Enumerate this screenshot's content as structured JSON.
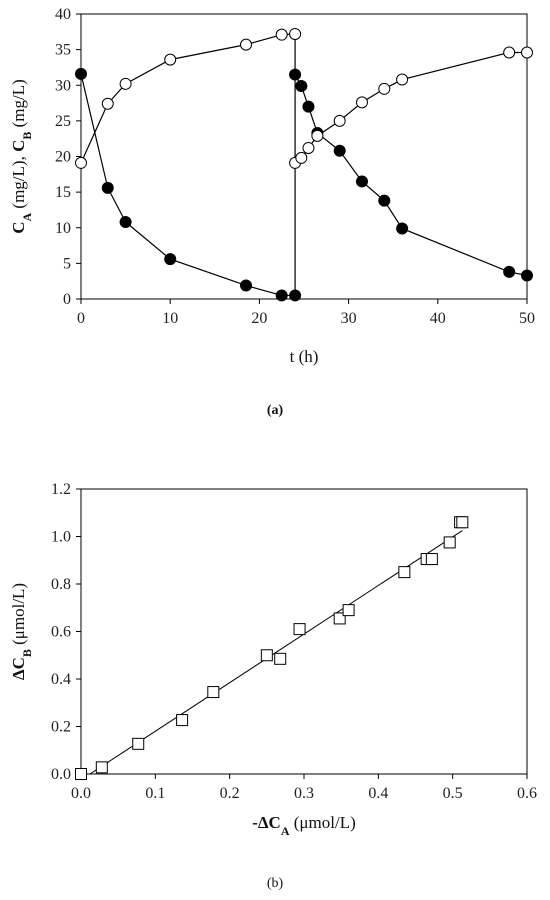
{
  "chart_data": [
    {
      "panel": "(a)",
      "type": "scatter",
      "xlabel": "t (h)",
      "ylabel": {
        "parts": [
          "C",
          "A",
          " (mg/L), ",
          "C",
          "B",
          " (mg/L)"
        ]
      },
      "xlim": [
        0,
        50
      ],
      "ylim": [
        0,
        40
      ],
      "xticks": [
        0,
        10,
        20,
        30,
        40,
        50
      ],
      "yticks": [
        0,
        5,
        10,
        15,
        20,
        25,
        30,
        35,
        40
      ],
      "grid": false,
      "series": [
        {
          "marker": "filled-circle",
          "segments": [
            [
              [
                0,
                31.6
              ],
              [
                3,
                15.6
              ],
              [
                5,
                10.8
              ],
              [
                10,
                5.6
              ],
              [
                18.5,
                1.9
              ],
              [
                22.5,
                0.5
              ],
              [
                24,
                0.5
              ]
            ],
            [
              [
                24,
                31.5
              ],
              [
                24.7,
                29.9
              ],
              [
                25.5,
                27.0
              ],
              [
                26.5,
                23.3
              ],
              [
                29,
                20.8
              ],
              [
                31.5,
                16.5
              ],
              [
                34,
                13.8
              ],
              [
                36,
                9.9
              ],
              [
                48,
                3.8
              ],
              [
                50,
                3.3
              ]
            ]
          ]
        },
        {
          "marker": "open-circle",
          "segments": [
            [
              [
                0,
                19.1
              ],
              [
                3,
                27.4
              ],
              [
                5,
                30.2
              ],
              [
                10,
                33.6
              ],
              [
                18.5,
                35.7
              ],
              [
                22.5,
                37.1
              ],
              [
                24,
                37.2
              ]
            ],
            [
              [
                24,
                19.1
              ],
              [
                24.7,
                19.8
              ],
              [
                25.5,
                21.2
              ],
              [
                26.5,
                22.9
              ],
              [
                29,
                25.0
              ],
              [
                31.5,
                27.6
              ],
              [
                34,
                29.5
              ],
              [
                36,
                30.8
              ],
              [
                48,
                34.6
              ],
              [
                50,
                34.6
              ]
            ]
          ]
        }
      ],
      "connector_lines": [
        [
          [
            24,
            0.5
          ],
          [
            24,
            37.2
          ]
        ]
      ]
    },
    {
      "panel": "(b)",
      "type": "scatter",
      "xlabel": {
        "parts": [
          "-ΔC",
          "A",
          " (μmol/L)"
        ]
      },
      "ylabel": {
        "parts": [
          "ΔC",
          "B",
          " (μmol/L)"
        ]
      },
      "xlim": [
        0,
        0.6
      ],
      "ylim": [
        0,
        1.2
      ],
      "xticks": [
        0,
        0.1,
        0.2,
        0.3,
        0.4,
        0.5,
        0.6
      ],
      "yticks": [
        0,
        0.2,
        0.4,
        0.6,
        0.8,
        1.0,
        1.2
      ],
      "grid": false,
      "series": [
        {
          "marker": "open-square",
          "points": [
            [
              0.0,
              0.0
            ],
            [
              0.028,
              0.028
            ],
            [
              0.077,
              0.127
            ],
            [
              0.136,
              0.227
            ],
            [
              0.178,
              0.345
            ],
            [
              0.25,
              0.5
            ],
            [
              0.268,
              0.485
            ],
            [
              0.294,
              0.61
            ],
            [
              0.348,
              0.655
            ],
            [
              0.36,
              0.69
            ],
            [
              0.435,
              0.85
            ],
            [
              0.465,
              0.905
            ],
            [
              0.472,
              0.905
            ],
            [
              0.496,
              0.975
            ],
            [
              0.51,
              1.06
            ],
            [
              0.513,
              1.06
            ]
          ]
        }
      ],
      "fit_line": [
        [
          0.012,
          0.0
        ],
        [
          0.513,
          1.025
        ]
      ]
    }
  ]
}
